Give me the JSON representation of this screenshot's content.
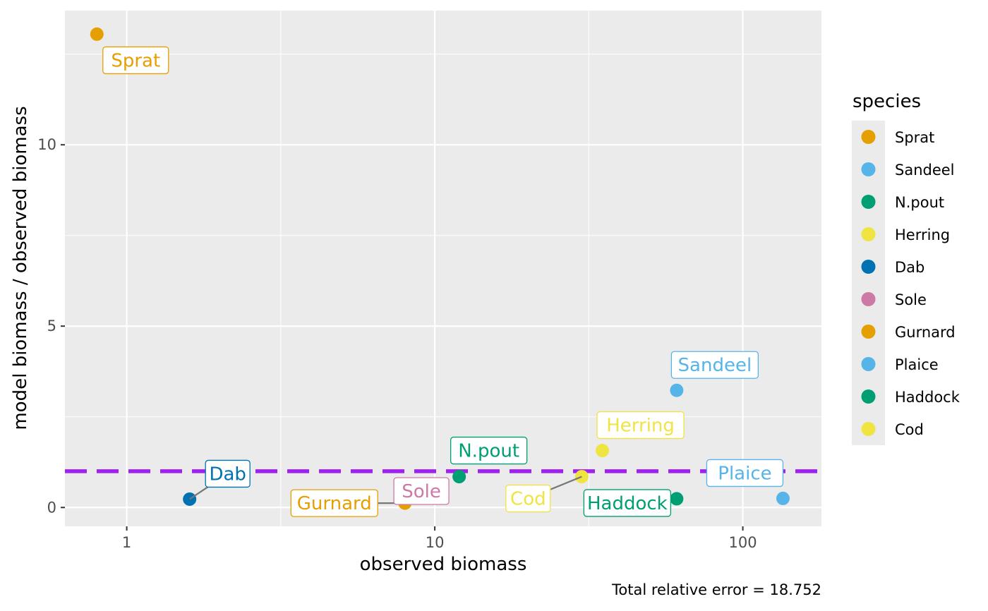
{
  "chart_data": {
    "type": "scatter",
    "xlabel": "observed biomass",
    "ylabel": "model biomass / observed biomass",
    "x_scale": "log10",
    "xlim": [
      0.63,
      180
    ],
    "ylim": [
      -0.52,
      13.7
    ],
    "x_ticks": [
      1,
      10,
      100
    ],
    "x_tick_labels": [
      "1",
      "10",
      "100"
    ],
    "y_ticks": [
      0,
      5,
      10
    ],
    "y_tick_labels": [
      "0",
      "5",
      "10"
    ],
    "grid": true,
    "reference_line": {
      "y": 1,
      "color": "#A020F0",
      "style": "dashed"
    },
    "caption": "Total relative error = 18.752",
    "legend": {
      "title": "species",
      "placement": "right",
      "entries": [
        {
          "name": "Sprat",
          "color": "#E69F00"
        },
        {
          "name": "Sandeel",
          "color": "#56B4E9"
        },
        {
          "name": "N.pout",
          "color": "#009E73"
        },
        {
          "name": "Herring",
          "color": "#F0E442"
        },
        {
          "name": "Dab",
          "color": "#0072B2"
        },
        {
          "name": "Sole",
          "color": "#CC79A7"
        },
        {
          "name": "Gurnard",
          "color": "#E69F00"
        },
        {
          "name": "Plaice",
          "color": "#56B4E9"
        },
        {
          "name": "Haddock",
          "color": "#009E73"
        },
        {
          "name": "Cod",
          "color": "#F0E442"
        }
      ]
    },
    "points": [
      {
        "species": "Sprat",
        "x": 0.8,
        "y": 13.05,
        "color": "#E69F00"
      },
      {
        "species": "Sandeel",
        "x": 61,
        "y": 3.23,
        "color": "#56B4E9"
      },
      {
        "species": "N.pout",
        "x": 12,
        "y": 0.85,
        "color": "#009E73"
      },
      {
        "species": "Herring",
        "x": 35,
        "y": 1.57,
        "color": "#F0E442"
      },
      {
        "species": "Dab",
        "x": 1.6,
        "y": 0.23,
        "color": "#0072B2"
      },
      {
        "species": "Sole",
        "x": 10,
        "y": 0.55,
        "color": "#CC79A7"
      },
      {
        "species": "Gurnard",
        "x": 8,
        "y": 0.12,
        "color": "#E69F00"
      },
      {
        "species": "Plaice",
        "x": 135,
        "y": 0.25,
        "color": "#56B4E9"
      },
      {
        "species": "Haddock",
        "x": 61,
        "y": 0.24,
        "color": "#009E73"
      },
      {
        "species": "Cod",
        "x": 30,
        "y": 0.85,
        "color": "#F0E442"
      }
    ]
  }
}
